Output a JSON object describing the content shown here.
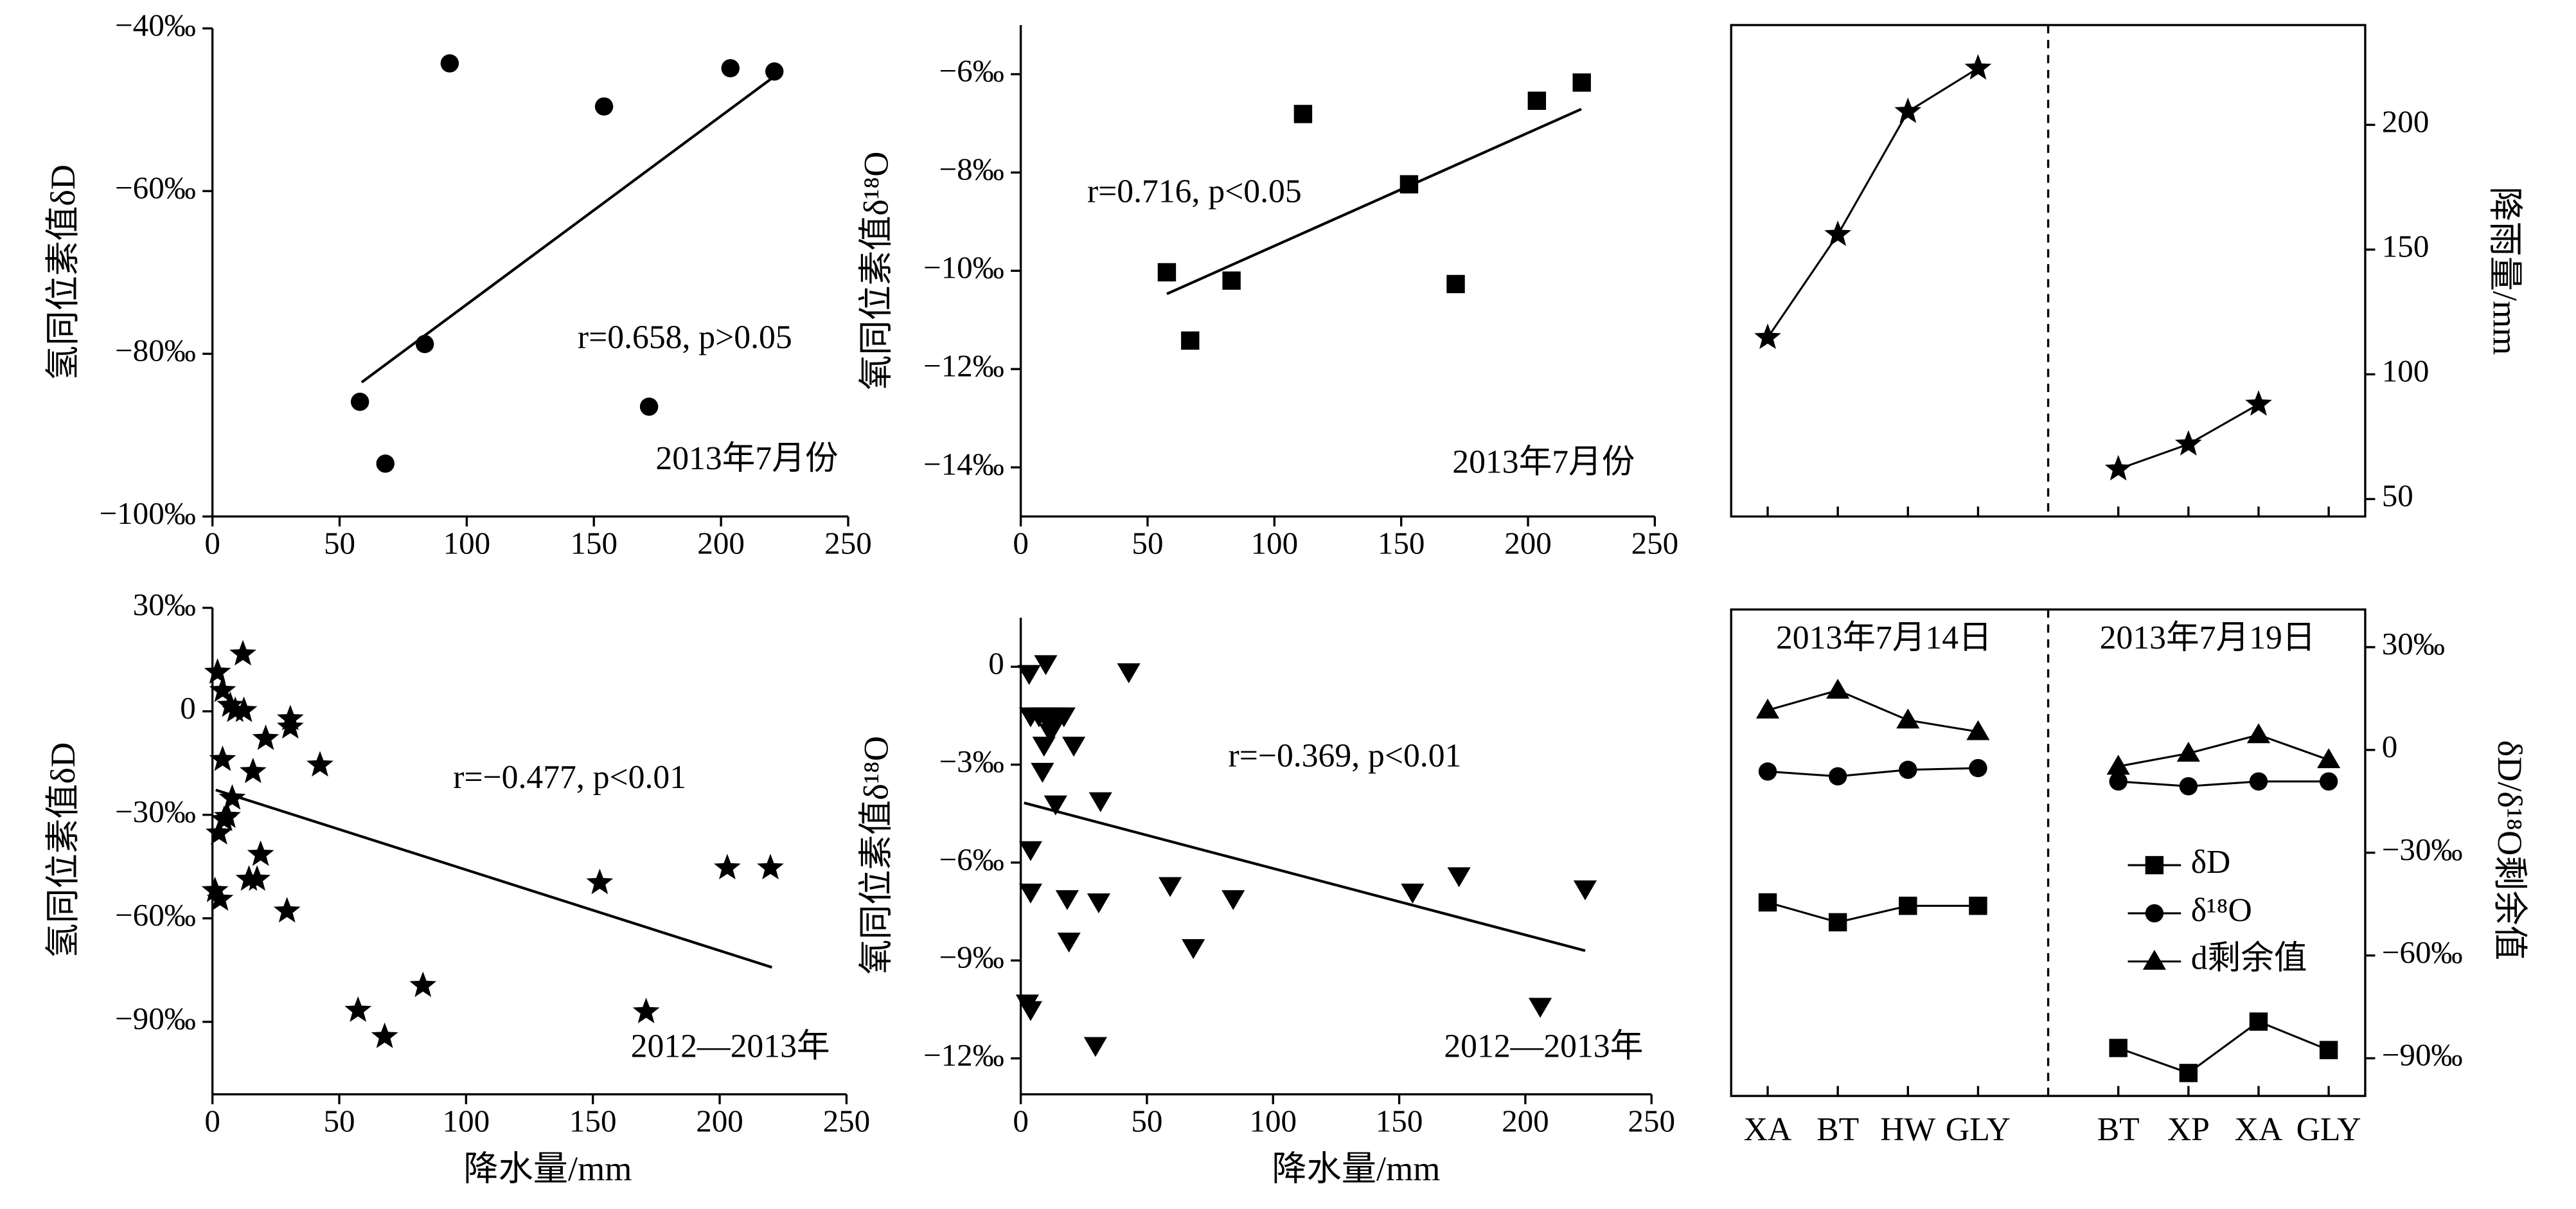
{
  "chart_data": [
    {
      "type": "scatter",
      "y_label": "氢同位素值δD",
      "annotations": [
        "r=0.658, p>0.05",
        "2013年7月份"
      ],
      "marker": "circle",
      "color": "#000000",
      "xlim": [
        0,
        250
      ],
      "xticks": [
        0,
        50,
        100,
        150,
        200,
        250
      ],
      "ylim": [
        -100,
        -40
      ],
      "yticks": [
        {
          "value": -100,
          "label": "−100‰"
        },
        {
          "value": -80,
          "label": "−80‰"
        },
        {
          "value": -60,
          "label": "−60‰"
        },
        {
          "value": -40,
          "label": "−40‰"
        }
      ],
      "x": [
        58,
        68,
        83.5,
        93.3,
        154,
        171.7,
        203.7,
        221
      ],
      "y": [
        -85.9,
        -93.5,
        -78.8,
        -44.3,
        -49.6,
        -86.5,
        -44.9,
        -45.3
      ],
      "trend": {
        "x": [
          58.7,
          221
        ],
        "y": [
          -83.5,
          -45.9
        ]
      }
    },
    {
      "type": "scatter",
      "y_label": "氧同位素值δ¹⁸O",
      "annotations": [
        "r=0.716, p<0.05",
        "2013年7月份"
      ],
      "marker": "square",
      "color": "#000000",
      "xlim": [
        0,
        250
      ],
      "xticks": [
        0,
        50,
        100,
        150,
        200,
        250
      ],
      "ylim": [
        -15,
        -5
      ],
      "yticks": [
        {
          "value": -14,
          "label": "−14‰"
        },
        {
          "value": -12,
          "label": "−12‰"
        },
        {
          "value": -10,
          "label": "−10‰"
        },
        {
          "value": -8,
          "label": "−8‰"
        },
        {
          "value": -6,
          "label": "−6‰"
        }
      ],
      "x": [
        57.6,
        66.8,
        83.1,
        111.3,
        153.1,
        171.5,
        203.5,
        221.2
      ],
      "y": [
        -10.03,
        -11.42,
        -10.2,
        -6.81,
        -8.24,
        -10.27,
        -6.54,
        -6.17
      ],
      "trend": {
        "x": [
          57.6,
          221
        ],
        "y": [
          -10.47,
          -6.71
        ]
      }
    },
    {
      "type": "line",
      "y_label": "降雨量/mm",
      "y_axis_side": "right",
      "marker": "star",
      "color": "#000000",
      "categories": [
        null,
        null,
        null,
        null,
        null,
        null,
        null,
        null,
        null
      ],
      "values": [
        114.7,
        156,
        205.3,
        222.7,
        null,
        62,
        72,
        88,
        null
      ],
      "ylim": [
        43,
        240
      ],
      "yticks": [
        50,
        100,
        150,
        200
      ]
    },
    {
      "type": "scatter",
      "y_label": "氢同位素值δD",
      "x_label": "降水量/mm",
      "annotations": [
        "r=−0.477, p<0.01",
        "2012—2013年"
      ],
      "marker": "star",
      "color": "#000000",
      "xlim": [
        0,
        250
      ],
      "xticks": [
        0,
        50,
        100,
        150,
        200,
        250
      ],
      "ylim": [
        -111,
        30
      ],
      "yticks": [
        {
          "value": -90,
          "label": "−90‰"
        },
        {
          "value": -60,
          "label": "−60‰"
        },
        {
          "value": -30,
          "label": "−30‰"
        },
        0,
        {
          "value": 30,
          "label": "30‰"
        }
      ],
      "x": [
        2,
        4,
        12,
        1,
        3,
        2.6,
        4.6,
        4,
        7,
        9,
        12.4,
        7.8,
        5.9,
        14.4,
        17.6,
        16,
        19,
        21,
        29.4,
        30.7,
        30.7,
        42.4,
        57.4,
        67.9,
        83,
        152.7,
        171,
        203,
        220
      ],
      "y": [
        11.3,
        6,
        16.6,
        -52,
        -54.5,
        -35.3,
        -31.4,
        -14,
        1.7,
        0.2,
        0.2,
        -25.2,
        -30.5,
        -48.7,
        -48.7,
        -17.5,
        -41.5,
        -7.9,
        -57.9,
        -2.2,
        -4.6,
        -15.6,
        -86.7,
        -94.3,
        -79.5,
        -49.7,
        -87.1,
        -45.4,
        -45.4
      ],
      "trend": {
        "x": [
          1.3,
          220.6
        ],
        "y": [
          -22.8,
          -74.2
        ]
      }
    },
    {
      "type": "scatter",
      "y_label": "氧同位素值δ¹⁸O",
      "x_label": "降水量/mm",
      "annotations": [
        "r=−0.369, p<0.01",
        "2012—2013年"
      ],
      "marker": "triangle-down",
      "color": "#000000",
      "xlim": [
        0,
        250
      ],
      "xticks": [
        0,
        50,
        100,
        150,
        200,
        250
      ],
      "ylim": [
        -13.1,
        1.5
      ],
      "yticks": [
        {
          "value": -12,
          "label": "−12‰"
        },
        {
          "value": -9,
          "label": "−9‰"
        },
        {
          "value": -6,
          "label": "−6‰"
        },
        {
          "value": -3,
          "label": "−3‰"
        },
        0
      ],
      "x": [
        3.3,
        9.9,
        3.9,
        7.2,
        10.5,
        13.8,
        17.1,
        9.2,
        11.8,
        8.6,
        12.5,
        21,
        13.8,
        3.9,
        3.9,
        18.4,
        30.9,
        31.6,
        19.1,
        29.6,
        2.6,
        3.9,
        42.8,
        59.2,
        68.4,
        84.2,
        155.3,
        173.7,
        205.9,
        223.7
      ],
      "y": [
        -0.2,
        0.1,
        -1.5,
        -1.5,
        -1.5,
        -1.5,
        -1.5,
        -2.4,
        -2,
        -3.2,
        -1.9,
        -2.4,
        -4.2,
        -5.6,
        -6.9,
        -7.1,
        -7.2,
        -4.1,
        -8.4,
        -11.6,
        -10.3,
        -10.5,
        -0.15,
        -6.7,
        -8.6,
        -7.1,
        -6.9,
        -6.4,
        -10.4,
        -6.8
      ],
      "trend": {
        "x": [
          1.3,
          223.7
        ],
        "y": [
          -4.17,
          -8.7
        ]
      }
    },
    {
      "type": "line",
      "y_label": "δD/δ¹⁸O剩余值",
      "y_axis_side": "right",
      "annotations": [
        "2013年7月14日",
        "2013年7月19日"
      ],
      "categories": [
        "XA",
        "BT",
        "HW",
        "GLY",
        null,
        "BT",
        "XP",
        "XA",
        "GLY"
      ],
      "ylim": [
        -101,
        41
      ],
      "yticks": [
        {
          "value": -90,
          "label": "−90‰"
        },
        {
          "value": -60,
          "label": "−60‰"
        },
        {
          "value": -30,
          "label": "−30‰"
        },
        0,
        {
          "value": 30,
          "label": "30‰"
        }
      ],
      "series": [
        {
          "name": "δD",
          "marker": "square",
          "color": "#000000",
          "values": [
            -44.5,
            -50.3,
            -45.5,
            -45.5,
            null,
            -87,
            -94.3,
            -79.3,
            -87.6
          ]
        },
        {
          "name": "δ¹⁸O",
          "marker": "circle",
          "color": "#000000",
          "values": [
            -6.3,
            -7.7,
            -5.8,
            -5.3,
            null,
            -9.2,
            -10.6,
            -9.2,
            -9.2
          ]
        },
        {
          "name": "d剩余值",
          "marker": "triangle-up",
          "color": "#000000",
          "values": [
            11.6,
            17.4,
            8.7,
            5.3,
            null,
            -4.8,
            -1,
            4.4,
            -2.9
          ]
        }
      ]
    }
  ]
}
